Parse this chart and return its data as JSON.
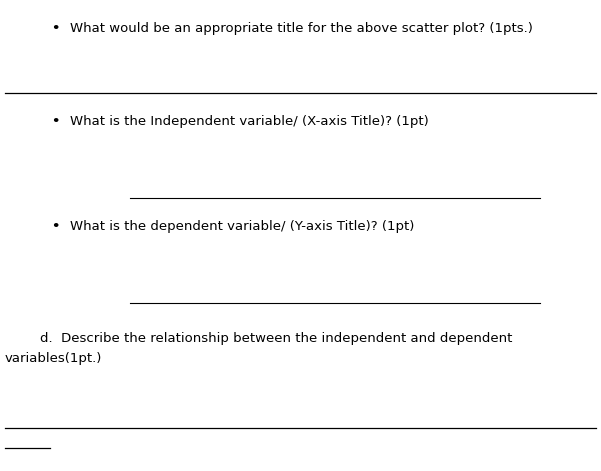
{
  "background_color": "#ffffff",
  "bullet1": "What would be an appropriate title for the above scatter plot? (1pts.)",
  "bullet2": "What is the Independent variable/ (X-axis Title)? (1pt)",
  "bullet3": "What is the dependent variable/ (Y-axis Title)? (1pt)",
  "line_d_1": "d.  Describe the relationship between the independent and dependent",
  "line_d_2": "variables(1pt.)",
  "font_size": 9.5,
  "text_color": "#000000",
  "line_color": "#000000",
  "fig_width": 6.01,
  "fig_height": 4.71,
  "dpi": 100
}
